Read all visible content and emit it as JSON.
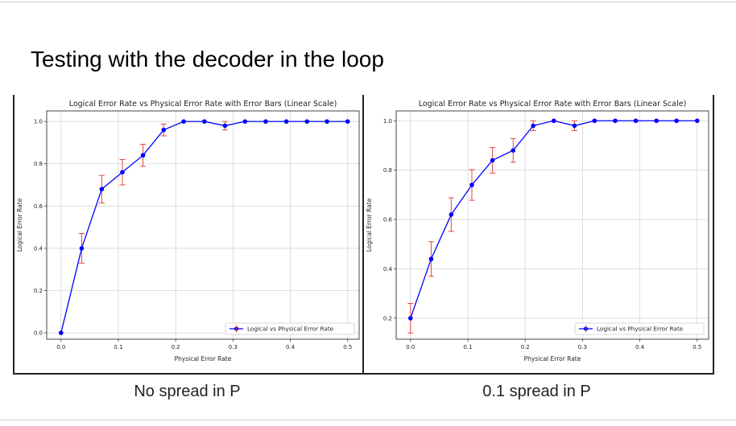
{
  "slide": {
    "title": "Testing with the decoder in the loop",
    "captions": [
      "No spread in P",
      "0.1 spread in P"
    ]
  },
  "chart_data": [
    {
      "type": "line",
      "title": "Logical Error Rate vs Physical Error Rate with Error Bars (Linear Scale)",
      "xlabel": "Physical Error Rate",
      "ylabel": "Logical Error Rate",
      "xlim": [
        -0.025,
        0.52
      ],
      "ylim": [
        -0.03,
        1.05
      ],
      "xticks": [
        0.0,
        0.1,
        0.2,
        0.3,
        0.4,
        0.5
      ],
      "yticks": [
        0.0,
        0.2,
        0.4,
        0.6,
        0.8,
        1.0
      ],
      "grid": true,
      "legend_position": "lower-right",
      "series": [
        {
          "name": "Logical vs Physical Error Rate",
          "color": "#0000ff",
          "error_color": "#e8473b",
          "x": [
            0.0,
            0.036,
            0.071,
            0.107,
            0.143,
            0.179,
            0.214,
            0.25,
            0.286,
            0.321,
            0.357,
            0.393,
            0.429,
            0.464,
            0.5
          ],
          "y": [
            0.0,
            0.4,
            0.68,
            0.76,
            0.84,
            0.96,
            1.0,
            1.0,
            0.98,
            1.0,
            1.0,
            1.0,
            1.0,
            1.0,
            1.0
          ],
          "yerr": [
            0.0,
            0.07,
            0.065,
            0.06,
            0.052,
            0.028,
            0.0,
            0.0,
            0.02,
            0.0,
            0.0,
            0.0,
            0.0,
            0.0,
            0.0
          ]
        }
      ]
    },
    {
      "type": "line",
      "title": "Logical Error Rate vs Physical Error Rate with Error Bars (Linear Scale)",
      "xlabel": "Physical Error Rate",
      "ylabel": "Logical Error Rate",
      "xlim": [
        -0.025,
        0.52
      ],
      "ylim": [
        0.115,
        1.04
      ],
      "xticks": [
        0.0,
        0.1,
        0.2,
        0.3,
        0.4,
        0.5
      ],
      "yticks": [
        0.2,
        0.4,
        0.6,
        0.8,
        1.0
      ],
      "grid": true,
      "legend_position": "lower-right",
      "series": [
        {
          "name": "Logical vs Physical Error Rate",
          "color": "#0000ff",
          "error_color": "#e8473b",
          "x": [
            0.0,
            0.036,
            0.071,
            0.107,
            0.143,
            0.179,
            0.214,
            0.25,
            0.286,
            0.321,
            0.357,
            0.393,
            0.429,
            0.464,
            0.5
          ],
          "y": [
            0.2,
            0.44,
            0.62,
            0.74,
            0.84,
            0.88,
            0.98,
            1.0,
            0.98,
            1.0,
            1.0,
            1.0,
            1.0,
            1.0,
            1.0
          ],
          "yerr": [
            0.06,
            0.07,
            0.068,
            0.062,
            0.052,
            0.048,
            0.02,
            0.0,
            0.02,
            0.0,
            0.0,
            0.0,
            0.0,
            0.0,
            0.0
          ]
        }
      ]
    }
  ]
}
